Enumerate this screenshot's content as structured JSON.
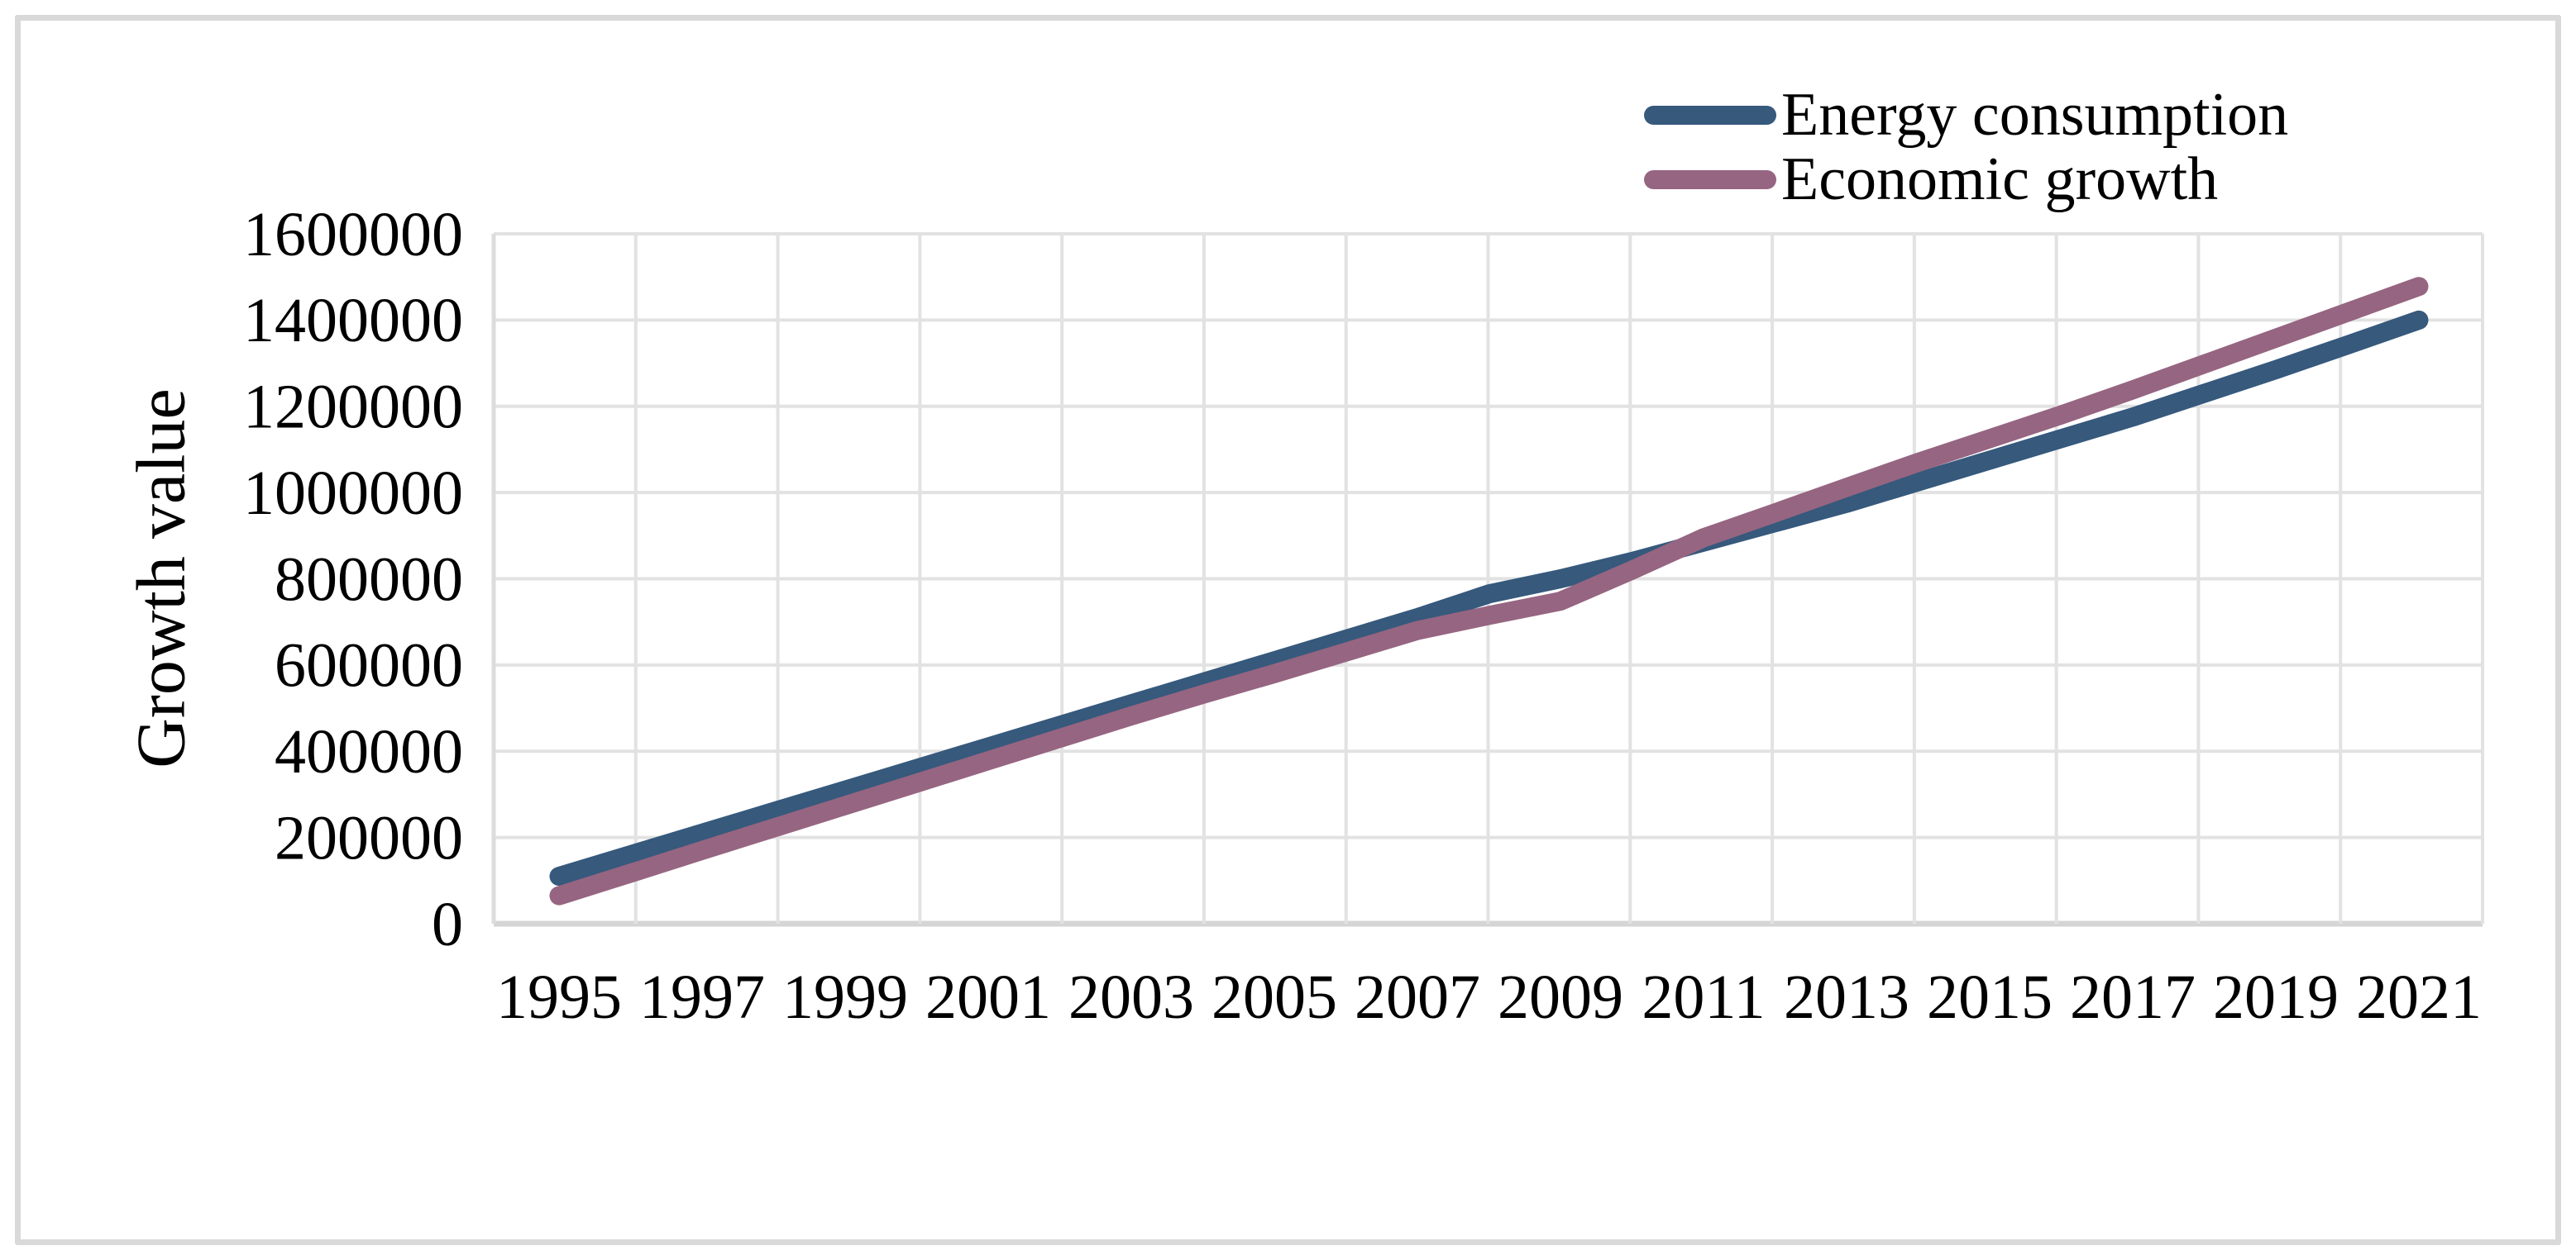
{
  "chart_data": {
    "type": "line",
    "title": "",
    "xlabel": "",
    "ylabel": "Growth value",
    "x": [
      1995,
      1996,
      1997,
      1998,
      1999,
      2000,
      2001,
      2002,
      2003,
      2004,
      2005,
      2006,
      2007,
      2008,
      2009,
      2010,
      2011,
      2012,
      2013,
      2014,
      2015,
      2016,
      2017,
      2018,
      2019,
      2020,
      2021
    ],
    "x_tick_labels": [
      "1995",
      "1997",
      "1999",
      "2001",
      "2003",
      "2005",
      "2007",
      "2009",
      "2011",
      "2013",
      "2015",
      "2017",
      "2019",
      "2021"
    ],
    "y_ticks": [
      0,
      200000,
      400000,
      600000,
      800000,
      1000000,
      1200000,
      1400000,
      1600000
    ],
    "y_tick_labels": [
      "0",
      "200000",
      "400000",
      "600000",
      "800000",
      "1000000",
      "1200000",
      "1400000",
      "1600000"
    ],
    "ylim": [
      0,
      1600000
    ],
    "grid": true,
    "smooth": true,
    "legend_position": "top-right",
    "series": [
      {
        "name": "Energy consumption",
        "color": "#36597C",
        "values": [
          110000,
          160000,
          210000,
          260000,
          310000,
          360000,
          410000,
          460000,
          510000,
          560000,
          610000,
          660000,
          710000,
          765000,
          800000,
          840000,
          885000,
          930000,
          975000,
          1025000,
          1075000,
          1125000,
          1175000,
          1230000,
          1285000,
          1342000,
          1400000
        ]
      },
      {
        "name": "Economic growth",
        "color": "#966581",
        "values": [
          65000,
          117000,
          170000,
          222000,
          274000,
          326000,
          378000,
          430000,
          482000,
          532000,
          580000,
          630000,
          680000,
          715000,
          748000,
          820000,
          895000,
          953000,
          1012000,
          1070000,
          1125000,
          1180000,
          1238000,
          1298000,
          1358000,
          1418000,
          1478000
        ]
      }
    ],
    "colors": {
      "gridline": "#E2E2E2",
      "axis_line": "#D5D5D5",
      "frame_border": "#D9D9D9",
      "text": "#000000"
    }
  }
}
